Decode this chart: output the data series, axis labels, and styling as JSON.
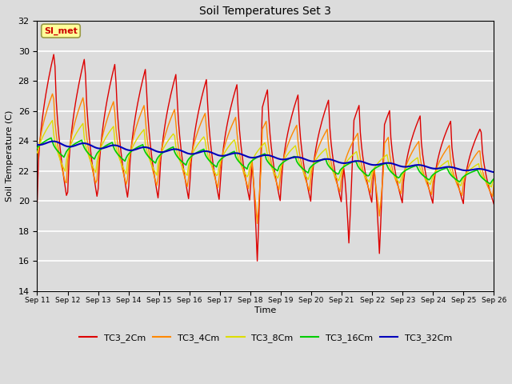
{
  "title": "Soil Temperatures Set 3",
  "xlabel": "Time",
  "ylabel": "Soil Temperature (C)",
  "ylim": [
    14,
    32
  ],
  "yticks": [
    14,
    16,
    18,
    20,
    22,
    24,
    26,
    28,
    30,
    32
  ],
  "xlim": [
    0,
    15
  ],
  "background_color": "#dcdcdc",
  "plot_bg_color": "#dcdcdc",
  "grid_color": "#ffffff",
  "annotation_text": "SI_met",
  "annotation_color": "#cc0000",
  "annotation_bg": "#ffff99",
  "annotation_border": "#999944",
  "colors": {
    "TC3_2Cm": "#dd0000",
    "TC3_4Cm": "#ff8800",
    "TC3_8Cm": "#dddd00",
    "TC3_16Cm": "#00cc00",
    "TC3_32Cm": "#0000bb"
  },
  "xtick_labels": [
    "Sep 11",
    "Sep 12",
    "Sep 13",
    "Sep 14",
    "Sep 15",
    "Sep 16",
    "Sep 17",
    "Sep 18",
    "Sep 19",
    "Sep 20",
    "Sep 21",
    "Sep 22",
    "Sep 23",
    "Sep 24",
    "Sep 25",
    "Sep 26"
  ],
  "xtick_positions": [
    0,
    1,
    2,
    3,
    4,
    5,
    6,
    7,
    8,
    9,
    10,
    11,
    12,
    13,
    14,
    15
  ]
}
